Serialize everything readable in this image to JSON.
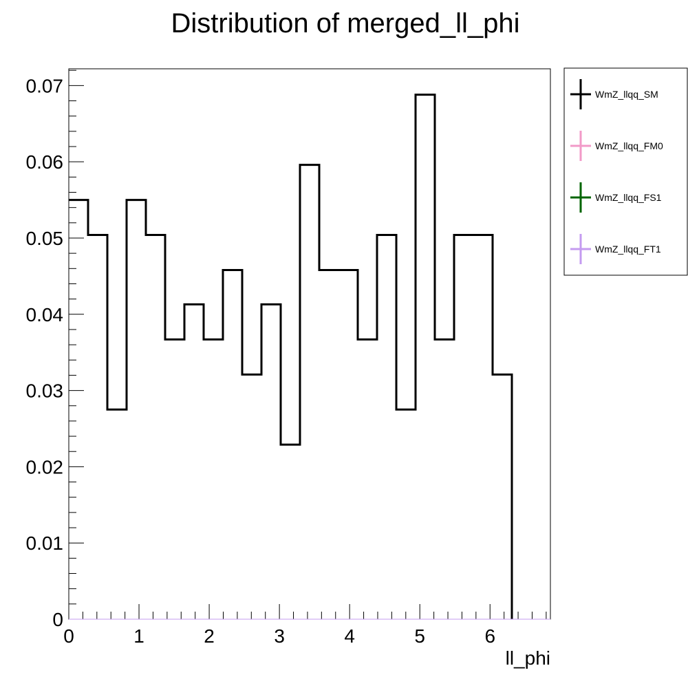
{
  "chart_data": {
    "type": "histogram",
    "title": "Distribution of merged_ll_phi",
    "xlabel": "ll_phi",
    "ylabel": "",
    "xlim": [
      0,
      6.86
    ],
    "ylim": [
      0,
      0.0722
    ],
    "bin_width": 0.2744,
    "x_ticks": [
      "0",
      "1",
      "2",
      "3",
      "4",
      "5",
      "6"
    ],
    "y_ticks": [
      "0",
      "0.01",
      "0.02",
      "0.03",
      "0.04",
      "0.05",
      "0.06",
      "0.07"
    ],
    "grid": false,
    "legend_position": "right",
    "series": [
      {
        "name": "WmZ_llqq_SM",
        "color": "#000000",
        "values": [
          0.055,
          0.0504,
          0.0275,
          0.055,
          0.0504,
          0.0367,
          0.0413,
          0.0367,
          0.0458,
          0.0321,
          0.0413,
          0.0229,
          0.0596,
          0.0458,
          0.0458,
          0.0367,
          0.0504,
          0.0275,
          0.0688,
          0.0367,
          0.0504,
          0.0504,
          0.0321
        ]
      },
      {
        "name": "WmZ_llqq_FM0",
        "color": "#f29ac8",
        "values": []
      },
      {
        "name": "WmZ_llqq_FS1",
        "color": "#006400",
        "values": []
      },
      {
        "name": "WmZ_llqq_FT1",
        "color": "#c49bf0",
        "values": []
      }
    ]
  }
}
